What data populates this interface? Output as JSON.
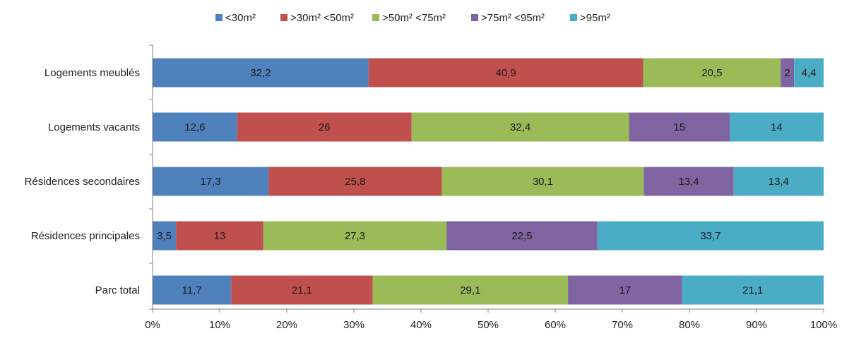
{
  "chart_data": {
    "type": "bar",
    "orientation": "horizontal",
    "stacked": true,
    "percent_stacked": true,
    "title": "",
    "xlabel": "",
    "ylabel": "",
    "xlim": [
      0,
      100
    ],
    "x_ticks": [
      "0%",
      "10%",
      "20%",
      "30%",
      "40%",
      "50%",
      "60%",
      "70%",
      "80%",
      "90%",
      "100%"
    ],
    "grid": false,
    "legend_position": "top",
    "categories": [
      "Logements meublés",
      "Logements vacants",
      "Résidences secondaires",
      "Résidences principales",
      "Parc total"
    ],
    "series": [
      {
        "name": "<30m²",
        "color": "#4f81bd",
        "values": [
          32.2,
          12.6,
          17.3,
          3.5,
          11.7
        ],
        "labels": [
          "32,2",
          "12,6",
          "17,3",
          "3,5",
          "11,7"
        ]
      },
      {
        "name": ">30m² <50m²",
        "color": "#c0504d",
        "values": [
          40.9,
          26,
          25.8,
          13,
          21.1
        ],
        "labels": [
          "40,9",
          "26",
          "25,8",
          "13",
          "21,1"
        ]
      },
      {
        "name": ">50m² <75m²",
        "color": "#9bbb59",
        "values": [
          20.5,
          32.4,
          30.1,
          27.3,
          29.1
        ],
        "labels": [
          "20,5",
          "32,4",
          "30,1",
          "27,3",
          "29,1"
        ]
      },
      {
        "name": ">75m² <95m²",
        "color": "#8064a2",
        "values": [
          2,
          15,
          13.4,
          22.5,
          17
        ],
        "labels": [
          "2",
          "15",
          "13,4",
          "22,5",
          "17"
        ]
      },
      {
        "name": ">95m²",
        "color": "#4bacc6",
        "values": [
          4.4,
          14,
          13.4,
          33.7,
          21.1
        ],
        "labels": [
          "4,4",
          "14",
          "13,4",
          "33,7",
          "21,1"
        ]
      }
    ]
  }
}
